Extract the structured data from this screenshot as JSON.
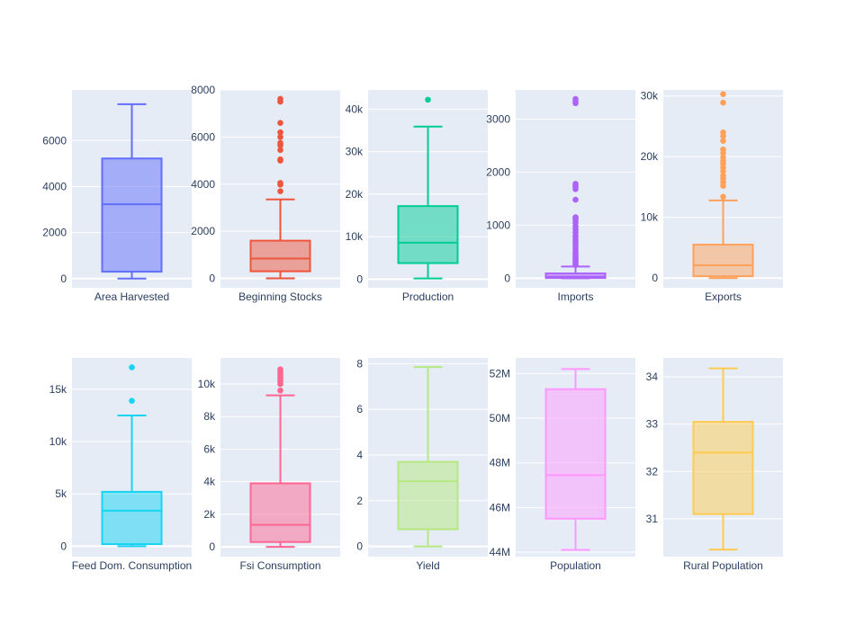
{
  "chart_data": {
    "type": "box",
    "layout": {
      "rows": 2,
      "cols": 5
    },
    "panels": [
      {
        "label": "Area Harvested",
        "color": "#636efa",
        "ylim": [
          -400,
          8200
        ],
        "ticks": [
          0,
          2000,
          4000,
          6000
        ],
        "tick_labels": [
          "0",
          "2000",
          "4000",
          "6000"
        ],
        "stats": {
          "min": 0,
          "q1": 300,
          "median": 3230,
          "q3": 5220,
          "max": 7580
        },
        "outliers": []
      },
      {
        "label": "Beginning Stocks",
        "color": "#EF553B",
        "ylim": [
          -400,
          8000
        ],
        "ticks": [
          0,
          2000,
          4000,
          6000,
          8000
        ],
        "tick_labels": [
          "0",
          "2000",
          "4000",
          "6000",
          "8000"
        ],
        "stats": {
          "min": 0,
          "q1": 300,
          "median": 840,
          "q3": 1600,
          "max": 3350
        },
        "outliers": [
          3700,
          3980,
          4050,
          5000,
          5050,
          5450,
          5650,
          5750,
          6000,
          6200,
          6600,
          7500,
          7620
        ]
      },
      {
        "label": "Production",
        "color": "#00cc96",
        "ylim": [
          -2000,
          44500
        ],
        "ticks": [
          0,
          10000,
          20000,
          30000,
          40000
        ],
        "tick_labels": [
          "0",
          "10k",
          "20k",
          "30k",
          "40k"
        ],
        "stats": {
          "min": 200,
          "q1": 3800,
          "median": 8600,
          "q3": 17200,
          "max": 35900
        },
        "outliers": [
          42200
        ]
      },
      {
        "label": "Imports",
        "color": "#ab63fa",
        "ylim": [
          -180,
          3550
        ],
        "ticks": [
          0,
          1000,
          2000,
          3000
        ],
        "tick_labels": [
          "0",
          "1000",
          "2000",
          "3000"
        ],
        "stats": {
          "min": 0,
          "q1": 5,
          "median": 30,
          "q3": 90,
          "max": 220
        },
        "outliers": [
          250,
          280,
          310,
          340,
          370,
          400,
          430,
          460,
          500,
          550,
          600,
          650,
          700,
          750,
          800,
          860,
          920,
          980,
          1050,
          1100,
          1130,
          1150,
          1480,
          1680,
          1720,
          1750,
          1780,
          3300,
          3340,
          3380
        ]
      },
      {
        "label": "Exports",
        "color": "#FFA15A",
        "ylim": [
          -1600,
          31000
        ],
        "ticks": [
          0,
          10000,
          20000,
          30000
        ],
        "tick_labels": [
          "0",
          "10k",
          "20k",
          "30k"
        ],
        "stats": {
          "min": 0,
          "q1": 300,
          "median": 2100,
          "q3": 5500,
          "max": 12800
        },
        "outliers": [
          13400,
          15200,
          15800,
          16400,
          16900,
          17600,
          18200,
          18800,
          19300,
          19900,
          20600,
          21200,
          22600,
          23400,
          24000,
          28900,
          30300
        ]
      },
      {
        "label": "Feed Dom. Consumption",
        "color": "#19d3f3",
        "ylim": [
          -1000,
          18000
        ],
        "ticks": [
          0,
          5000,
          10000,
          15000
        ],
        "tick_labels": [
          "0",
          "5k",
          "10k",
          "15k"
        ],
        "stats": {
          "min": 0,
          "q1": 200,
          "median": 3400,
          "q3": 5200,
          "max": 12500
        },
        "outliers": [
          13900,
          17100
        ]
      },
      {
        "label": "Fsi Consumption",
        "color": "#FF6692",
        "ylim": [
          -600,
          11600
        ],
        "ticks": [
          0,
          2000,
          4000,
          6000,
          8000,
          10000
        ],
        "tick_labels": [
          "0",
          "2k",
          "4k",
          "6k",
          "8k",
          "10k"
        ],
        "stats": {
          "min": 0,
          "q1": 300,
          "median": 1350,
          "q3": 3900,
          "max": 9300
        },
        "outliers": [
          9600,
          10000,
          10150,
          10300,
          10450,
          10600,
          10750,
          10900
        ]
      },
      {
        "label": "Yield",
        "color": "#B6E880",
        "ylim": [
          -0.45,
          8.25
        ],
        "ticks": [
          0,
          2,
          4,
          6,
          8
        ],
        "tick_labels": [
          "0",
          "2",
          "4",
          "6",
          "8"
        ],
        "stats": {
          "min": 0,
          "q1": 0.75,
          "median": 2.85,
          "q3": 3.7,
          "max": 7.85
        },
        "outliers": []
      },
      {
        "label": "Population",
        "color": "#FF97FF",
        "ylim": [
          43800000,
          52700000
        ],
        "ticks": [
          44000000,
          46000000,
          48000000,
          50000000,
          52000000
        ],
        "tick_labels": [
          "44M",
          "46M",
          "48M",
          "50M",
          "52M"
        ],
        "stats": {
          "min": 44100000,
          "q1": 45500000,
          "median": 47450000,
          "q3": 51300000,
          "max": 52200000
        },
        "outliers": []
      },
      {
        "label": "Rural Population",
        "color": "#FECB52",
        "ylim": [
          30.2,
          34.4
        ],
        "ticks": [
          31,
          32,
          33,
          34
        ],
        "tick_labels": [
          "31",
          "32",
          "33",
          "34"
        ],
        "stats": {
          "min": 30.35,
          "q1": 31.1,
          "median": 32.4,
          "q3": 33.05,
          "max": 34.18
        },
        "outliers": []
      }
    ]
  }
}
